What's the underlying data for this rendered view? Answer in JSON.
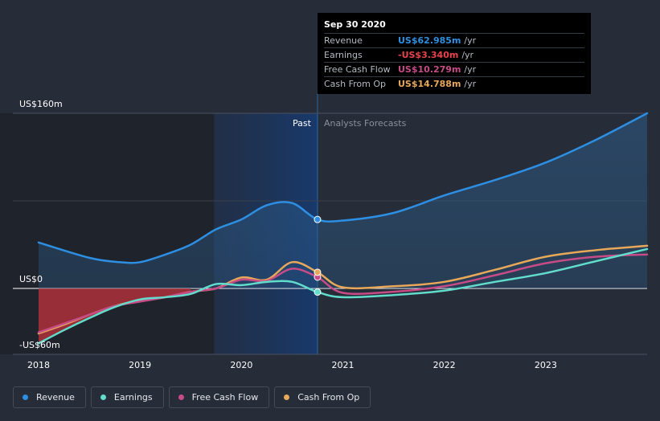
{
  "tooltip": {
    "date": "Sep 30 2020",
    "rows": [
      {
        "label": "Revenue",
        "value": "US$62.985m",
        "unit": "/yr",
        "color": "#2f8fe0"
      },
      {
        "label": "Earnings",
        "value": "-US$3.340m",
        "unit": "/yr",
        "color": "#e8424c"
      },
      {
        "label": "Free Cash Flow",
        "value": "US$10.279m",
        "unit": "/yr",
        "color": "#c64b87"
      },
      {
        "label": "Cash From Op",
        "value": "US$14.788m",
        "unit": "/yr",
        "color": "#e8a85a"
      }
    ]
  },
  "periods": {
    "past": "Past",
    "forecast": "Analysts Forecasts"
  },
  "legend": [
    {
      "label": "Revenue",
      "color": "#2d8ee2"
    },
    {
      "label": "Earnings",
      "color": "#62dccb"
    },
    {
      "label": "Free Cash Flow",
      "color": "#c64b87"
    },
    {
      "label": "Cash From Op",
      "color": "#e8a85a"
    }
  ],
  "chart_data": {
    "type": "line",
    "ylim": [
      -60,
      160
    ],
    "xlim": [
      2018,
      2024
    ],
    "y_tick_labels": [
      {
        "value": 160,
        "label": "US$160m"
      },
      {
        "value": 0,
        "label": "US$0"
      },
      {
        "value": -60,
        "label": "-US$60m"
      }
    ],
    "x_tick_labels": [
      {
        "value": 2018,
        "label": "2018"
      },
      {
        "value": 2019,
        "label": "2019"
      },
      {
        "value": 2020,
        "label": "2020"
      },
      {
        "value": 2021,
        "label": "2021"
      },
      {
        "value": 2022,
        "label": "2022"
      },
      {
        "value": 2023,
        "label": "2023"
      }
    ],
    "past_start": 2019.73,
    "past_end": 2020.75,
    "selected_x": 2020.75,
    "series": [
      {
        "name": "Revenue",
        "color": "#2d8ee2",
        "points": [
          [
            2018,
            42
          ],
          [
            2018.5,
            28
          ],
          [
            2018.8,
            24
          ],
          [
            2019.0,
            24
          ],
          [
            2019.25,
            31
          ],
          [
            2019.5,
            40
          ],
          [
            2019.75,
            54
          ],
          [
            2020.0,
            63
          ],
          [
            2020.25,
            76
          ],
          [
            2020.5,
            78
          ],
          [
            2020.75,
            63
          ],
          [
            2021.0,
            62
          ],
          [
            2021.5,
            69
          ],
          [
            2022.0,
            85
          ],
          [
            2022.5,
            99
          ],
          [
            2023.0,
            115
          ],
          [
            2023.5,
            136
          ],
          [
            2024.0,
            160
          ]
        ]
      },
      {
        "name": "Earnings",
        "color": "#62dccb",
        "points": [
          [
            2018,
            -50
          ],
          [
            2018.25,
            -38
          ],
          [
            2018.5,
            -27
          ],
          [
            2018.75,
            -17
          ],
          [
            2019.0,
            -10
          ],
          [
            2019.25,
            -8
          ],
          [
            2019.5,
            -5
          ],
          [
            2019.75,
            4
          ],
          [
            2020.0,
            3
          ],
          [
            2020.25,
            6
          ],
          [
            2020.5,
            6
          ],
          [
            2020.75,
            -3.3
          ],
          [
            2021.0,
            -8
          ],
          [
            2021.5,
            -6
          ],
          [
            2022.0,
            -2
          ],
          [
            2022.5,
            6
          ],
          [
            2023.0,
            14
          ],
          [
            2023.5,
            25
          ],
          [
            2024.0,
            36
          ]
        ]
      },
      {
        "name": "Free Cash Flow",
        "color": "#c64b87",
        "points": [
          [
            2018,
            -40
          ],
          [
            2018.25,
            -32
          ],
          [
            2018.5,
            -24
          ],
          [
            2018.75,
            -16
          ],
          [
            2019.0,
            -12
          ],
          [
            2019.25,
            -8
          ],
          [
            2019.5,
            -3
          ],
          [
            2019.75,
            0
          ],
          [
            2020.0,
            8
          ],
          [
            2020.25,
            7
          ],
          [
            2020.5,
            18
          ],
          [
            2020.75,
            10.3
          ],
          [
            2021.0,
            -4
          ],
          [
            2021.5,
            -3
          ],
          [
            2022.0,
            2
          ],
          [
            2022.5,
            12
          ],
          [
            2023.0,
            23
          ],
          [
            2023.5,
            29
          ],
          [
            2024.0,
            31
          ]
        ]
      },
      {
        "name": "Cash From Op",
        "color": "#e8a85a",
        "points": [
          [
            2018,
            -41
          ],
          [
            2018.25,
            -33
          ],
          [
            2018.5,
            -24
          ],
          [
            2018.75,
            -16
          ],
          [
            2019.0,
            -11
          ],
          [
            2019.25,
            -8
          ],
          [
            2019.5,
            -3
          ],
          [
            2019.75,
            0
          ],
          [
            2020.0,
            10
          ],
          [
            2020.25,
            8
          ],
          [
            2020.5,
            24
          ],
          [
            2020.75,
            14.8
          ],
          [
            2021.0,
            1
          ],
          [
            2021.5,
            2
          ],
          [
            2022.0,
            6
          ],
          [
            2022.5,
            17
          ],
          [
            2023.0,
            29
          ],
          [
            2023.5,
            35
          ],
          [
            2024.0,
            39
          ]
        ]
      }
    ]
  }
}
